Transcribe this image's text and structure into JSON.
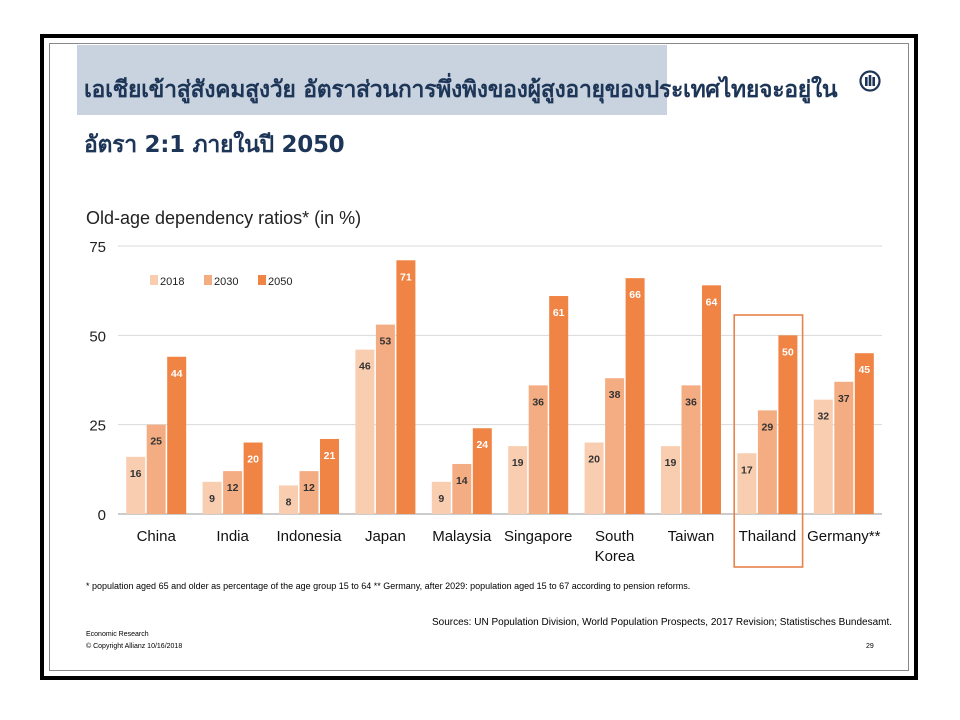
{
  "header": {
    "title_line1": "เอเชียเข้าสู่สังคมสูงวัย อัตราส่วนการพึ่งพิงของผู้สูงอายุของประเทศไทยจะอยู่ใน",
    "title_line2": "อัตรา 2:1 ภายในปี 2050",
    "logo_icon": "allianz-logo-icon"
  },
  "colors": {
    "s2018": "#f9cdb0",
    "s2030": "#f4ad83",
    "s2050": "#f08444",
    "highlight": "#e8824a",
    "title": "#1d3557"
  },
  "chart_data": {
    "type": "bar",
    "title": "Old-age dependency ratios* (in %)",
    "categories": [
      "China",
      "India",
      "Indonesia",
      "Japan",
      "Malaysia",
      "Singapore",
      "South Korea",
      "Taiwan",
      "Thailand",
      "Germany**"
    ],
    "series": [
      {
        "name": "2018",
        "values": [
          16,
          9,
          8,
          46,
          9,
          19,
          20,
          19,
          17,
          32
        ]
      },
      {
        "name": "2030",
        "values": [
          25,
          12,
          12,
          53,
          14,
          36,
          38,
          36,
          29,
          37
        ]
      },
      {
        "name": "2050",
        "values": [
          44,
          20,
          21,
          71,
          24,
          61,
          66,
          64,
          50,
          45
        ]
      }
    ],
    "yticks": [
      0,
      25,
      50,
      75
    ],
    "ylim": [
      0,
      75
    ],
    "grid": true,
    "legend": "top-left",
    "highlight_category": "Thailand"
  },
  "footer": {
    "note": "* population aged 65 and older as percentage of the age group 15 to 64   ** Germany, after 2029:  population aged 15 to 67 according to pension reforms.",
    "sources": "Sources: UN Population Division, World Population Prospects, 2017 Revision; Statistisches Bundesamt.",
    "dept": "Economic Research",
    "copyright": "© Copyright Allianz  10/16/2018",
    "page": "29"
  }
}
